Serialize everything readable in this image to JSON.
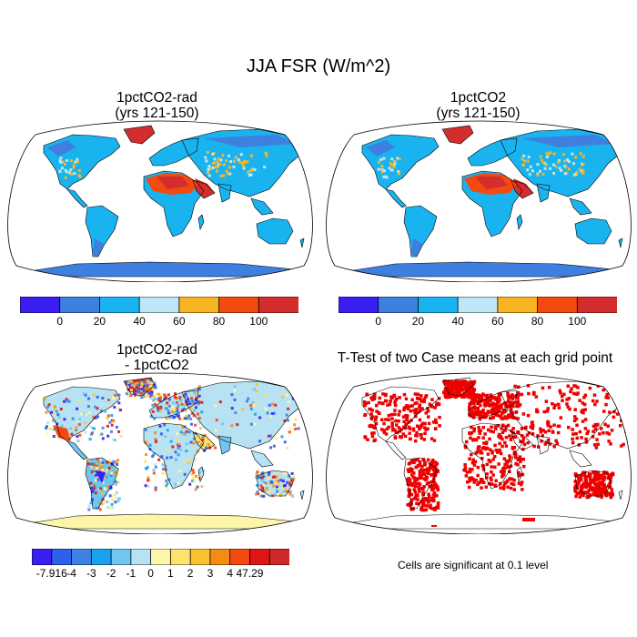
{
  "figure": {
    "title": "JJA FSR (W/m^2)"
  },
  "panels": [
    {
      "id": "p1",
      "title_line1": "1pctCO2-rad",
      "title_line2": "(yrs 121-150)"
    },
    {
      "id": "p2",
      "title_line1": "1pctCO2",
      "title_line2": "(yrs 121-150)"
    },
    {
      "id": "p3",
      "title_line1": "1pctCO2-rad",
      "title_line2": "- 1pctCO2"
    },
    {
      "id": "p4",
      "title_line1": "T-Test of two Case means at each grid point",
      "title_line2": ""
    }
  ],
  "colorbar_abs": {
    "labels": [
      "0",
      "20",
      "40",
      "60",
      "80",
      "100"
    ],
    "colors": [
      "#3b1ef2",
      "#3f7fe0",
      "#19b3ef",
      "#bfe6f6",
      "#f8b522",
      "#f24a10",
      "#d42d2d"
    ]
  },
  "colorbar_diff": {
    "labels": [
      "-7.916",
      "-4",
      "-3",
      "-2",
      "-1",
      "0",
      "1",
      "2",
      "3",
      "4",
      "47.29"
    ],
    "colors": [
      "#3b1ef2",
      "#2f5fef",
      "#3f82e6",
      "#1aa2ef",
      "#6fc6ef",
      "#b6e2f3",
      "#fdf6a8",
      "#fde36d",
      "#f9c233",
      "#f68b14",
      "#f24a10",
      "#e01515",
      "#cc2a2a"
    ]
  },
  "ttest_note": "Cells are significant at 0.1 level"
}
